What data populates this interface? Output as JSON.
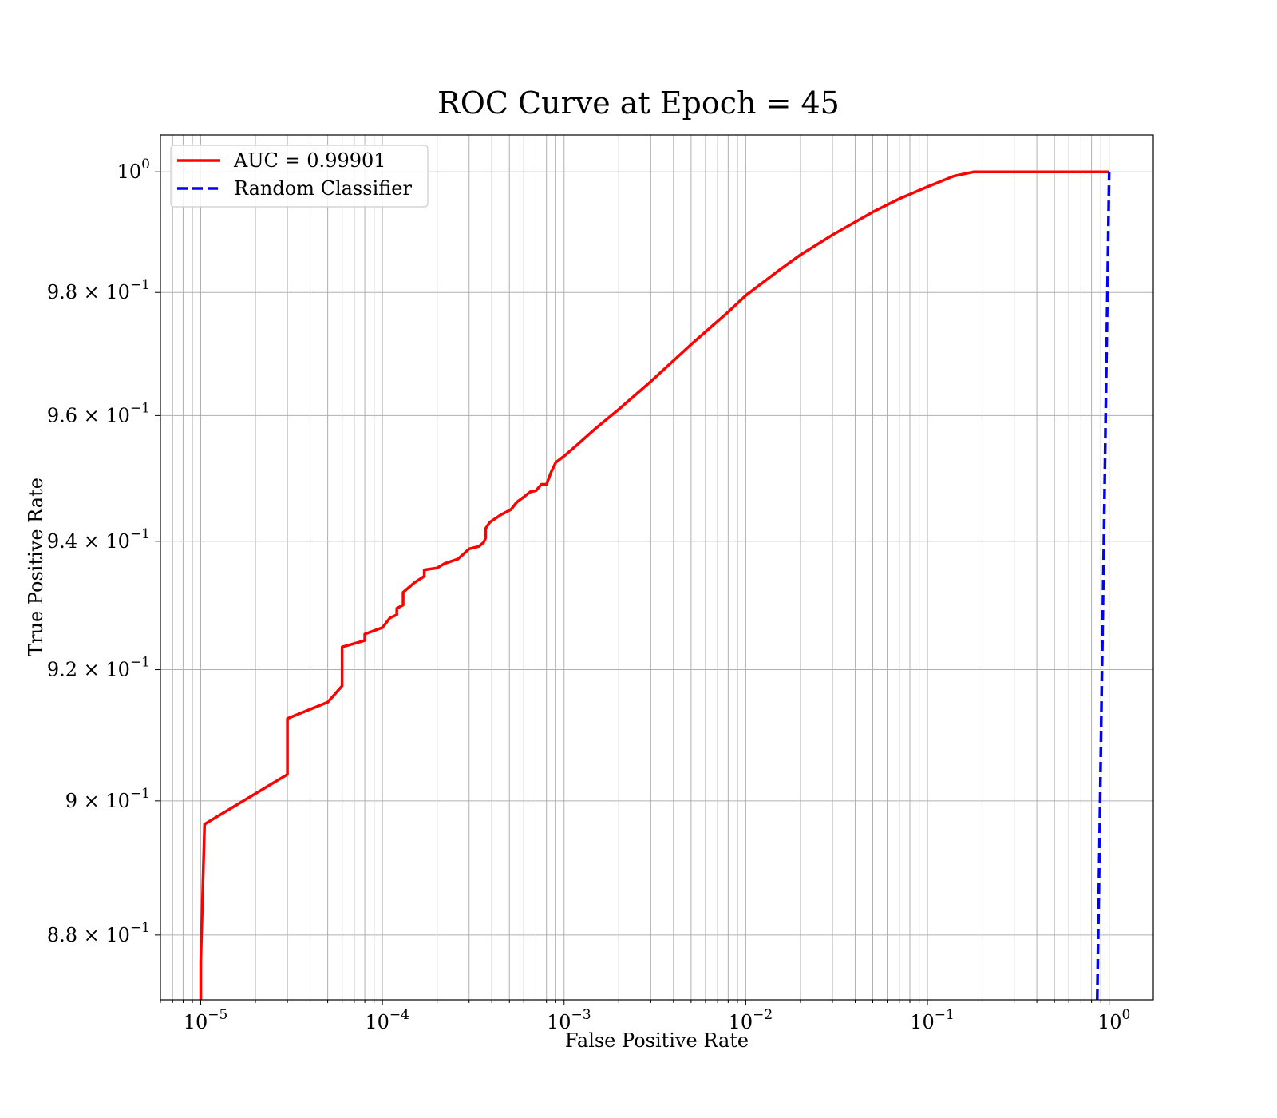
{
  "chart_data": {
    "type": "line",
    "title": "ROC Curve at Epoch = 45",
    "xlabel": "False Positive Rate",
    "ylabel": "True Positive Rate",
    "xscale": "log",
    "yscale": "log",
    "xlim": [
      6e-06,
      1.75
    ],
    "ylim": [
      0.8705,
      1.0062
    ],
    "grid": "both (major and minor)",
    "legend_position": "upper-left",
    "x_ticks": [
      {
        "value": 1e-05,
        "base": "10",
        "exp": "−5"
      },
      {
        "value": 0.0001,
        "base": "10",
        "exp": "−4"
      },
      {
        "value": 0.001,
        "base": "10",
        "exp": "−3"
      },
      {
        "value": 0.01,
        "base": "10",
        "exp": "−2"
      },
      {
        "value": 0.1,
        "base": "10",
        "exp": "−1"
      },
      {
        "value": 1,
        "base": "10",
        "exp": "0"
      }
    ],
    "y_ticks": [
      {
        "value": 0.88,
        "base": "8.8 × 10",
        "exp": "−1"
      },
      {
        "value": 0.9,
        "base": "9 × 10",
        "exp": "−1"
      },
      {
        "value": 0.92,
        "base": "9.2 × 10",
        "exp": "−1"
      },
      {
        "value": 0.94,
        "base": "9.4 × 10",
        "exp": "−1"
      },
      {
        "value": 0.96,
        "base": "9.6 × 10",
        "exp": "−1"
      },
      {
        "value": 0.98,
        "base": "9.8 × 10",
        "exp": "−1"
      },
      {
        "value": 1.0,
        "base": "10",
        "exp": "0"
      }
    ],
    "series": [
      {
        "name": "AUC = 0.99901",
        "color": "#ff0000",
        "style": "solid",
        "points": [
          [
            1e-05,
            0.8705
          ],
          [
            1e-05,
            0.876
          ],
          [
            1.05e-05,
            0.8965
          ],
          [
            3e-05,
            0.904
          ],
          [
            3e-05,
            0.9125
          ],
          [
            5e-05,
            0.915
          ],
          [
            6e-05,
            0.9175
          ],
          [
            6e-05,
            0.9235
          ],
          [
            8e-05,
            0.9245
          ],
          [
            8e-05,
            0.9255
          ],
          [
            0.0001,
            0.9265
          ],
          [
            0.00011,
            0.928
          ],
          [
            0.00012,
            0.9285
          ],
          [
            0.00012,
            0.9295
          ],
          [
            0.00013,
            0.93
          ],
          [
            0.00013,
            0.932
          ],
          [
            0.00015,
            0.9335
          ],
          [
            0.00017,
            0.9345
          ],
          [
            0.00017,
            0.9355
          ],
          [
            0.0002,
            0.9358
          ],
          [
            0.00022,
            0.9365
          ],
          [
            0.00026,
            0.9372
          ],
          [
            0.00028,
            0.938
          ],
          [
            0.0003,
            0.9388
          ],
          [
            0.00034,
            0.9392
          ],
          [
            0.00036,
            0.9398
          ],
          [
            0.00037,
            0.9405
          ],
          [
            0.00037,
            0.942
          ],
          [
            0.00039,
            0.943
          ],
          [
            0.00045,
            0.9442
          ],
          [
            0.00051,
            0.945
          ],
          [
            0.00055,
            0.9462
          ],
          [
            0.0006,
            0.947
          ],
          [
            0.00065,
            0.9478
          ],
          [
            0.0007,
            0.948
          ],
          [
            0.00075,
            0.949
          ],
          [
            0.0008,
            0.949
          ],
          [
            0.00085,
            0.951
          ],
          [
            0.0009,
            0.9525
          ],
          [
            0.001,
            0.9535
          ],
          [
            0.0012,
            0.9555
          ],
          [
            0.0015,
            0.958
          ],
          [
            0.002,
            0.961
          ],
          [
            0.003,
            0.9655
          ],
          [
            0.005,
            0.9715
          ],
          [
            0.008,
            0.9768
          ],
          [
            0.01,
            0.9795
          ],
          [
            0.015,
            0.9835
          ],
          [
            0.02,
            0.9862
          ],
          [
            0.03,
            0.9895
          ],
          [
            0.05,
            0.9933
          ],
          [
            0.07,
            0.9955
          ],
          [
            0.1,
            0.9975
          ],
          [
            0.14,
            0.9993
          ],
          [
            0.18,
            1.0
          ],
          [
            1.0,
            1.0
          ]
        ]
      },
      {
        "name": "Random Classifier",
        "color": "#0000ff",
        "style": "dashed",
        "points": [
          [
            0.86,
            0.8705
          ],
          [
            1.0,
            1.0
          ]
        ]
      }
    ]
  }
}
